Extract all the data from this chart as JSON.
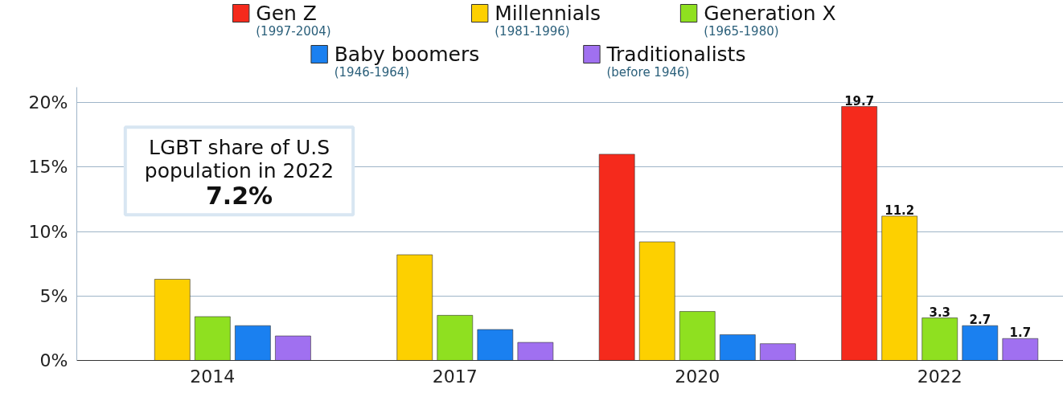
{
  "chart_data": {
    "type": "bar",
    "categories": [
      "2014",
      "2017",
      "2020",
      "2022"
    ],
    "series": [
      {
        "name": "Gen Z\n(1997-2004)",
        "color": "#f52a1c",
        "values": [
          null,
          null,
          16.0,
          19.7
        ],
        "value_labels": [
          null,
          null,
          null,
          "19.7"
        ]
      },
      {
        "name": "Millennials\n(1981-1996)",
        "color": "#fdd000",
        "values": [
          6.3,
          8.2,
          9.2,
          11.2
        ],
        "value_labels": [
          null,
          null,
          null,
          "11.2"
        ]
      },
      {
        "name": "Generation X\n(1965-1980)",
        "color": "#8fe020",
        "values": [
          3.4,
          3.5,
          3.8,
          3.3
        ],
        "value_labels": [
          null,
          null,
          null,
          "3.3"
        ]
      },
      {
        "name": "Baby boomers\n(1946-1964)",
        "color": "#1a80f0",
        "values": [
          2.7,
          2.4,
          2.0,
          2.7
        ],
        "value_labels": [
          null,
          null,
          null,
          "2.7"
        ]
      },
      {
        "name": "Traditionalists\n(before 1946)",
        "color": "#a070f0",
        "values": [
          1.9,
          1.4,
          1.3,
          1.7
        ],
        "value_labels": [
          null,
          null,
          null,
          "1.7"
        ]
      }
    ],
    "ylim": [
      0,
      21.2
    ],
    "yticks": [
      {
        "value": 0,
        "label": "0%"
      },
      {
        "value": 5,
        "label": "5%"
      },
      {
        "value": 10,
        "label": "10%"
      },
      {
        "value": 15,
        "label": "15%"
      },
      {
        "value": 20,
        "label": "20%"
      }
    ],
    "grid": "y",
    "legend": "top",
    "annotations": [
      "LGBT share of U.S\npopulation in 2022\n7.2%"
    ]
  }
}
